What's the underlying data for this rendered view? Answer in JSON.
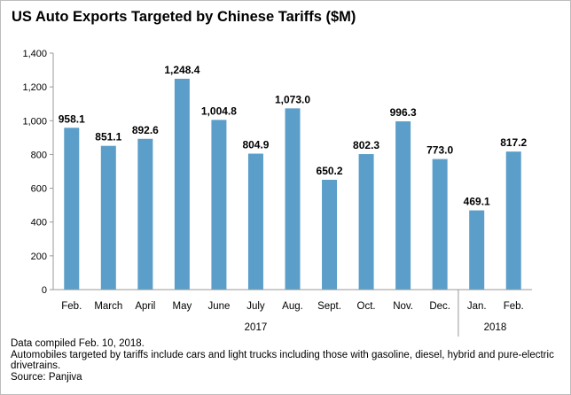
{
  "title": "US Auto Exports Targeted by Chinese Tariffs ($M)",
  "chart_data": {
    "type": "bar",
    "categories": [
      "Feb.",
      "March",
      "April",
      "May",
      "June",
      "July",
      "Aug.",
      "Sept.",
      "Oct.",
      "Nov.",
      "Dec.",
      "Jan.",
      "Feb."
    ],
    "values": [
      958.1,
      851.1,
      892.6,
      1248.4,
      1004.8,
      804.9,
      1073.0,
      650.2,
      802.3,
      996.3,
      773.0,
      469.1,
      817.2
    ],
    "value_labels": [
      "958.1",
      "851.1",
      "892.6",
      "1,248.4",
      "1,004.8",
      "804.9",
      "1,073.0",
      "650.2",
      "802.3",
      "996.3",
      "773.0",
      "469.1",
      "817.2"
    ],
    "year_groups": [
      {
        "label": "2017",
        "start": 0,
        "end": 10
      },
      {
        "label": "2018",
        "start": 11,
        "end": 12
      }
    ],
    "ylim": [
      0,
      1400
    ],
    "yticks": [
      0,
      200,
      400,
      600,
      800,
      1000,
      1200,
      1400
    ],
    "ytick_labels": [
      "0",
      "200",
      "400",
      "600",
      "800",
      "1,000",
      "1,200",
      "1,400"
    ],
    "grid": false,
    "bar_color": "#5b9ec9",
    "axis_color": "#999999"
  },
  "footnotes": [
    "Data compiled Feb. 10, 2018.",
    "Automobiles targeted by tariffs include cars and light trucks including those with gasoline, diesel, hybrid and pure-electric drivetrains.",
    "Source: Panjiva"
  ]
}
